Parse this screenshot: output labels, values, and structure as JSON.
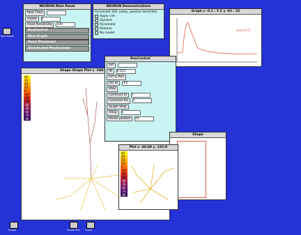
{
  "main_panel": {
    "title": "NEURON Main Panel",
    "rows": [
      {
        "label": "Real Time",
        "value": ""
      },
      {
        "label": "cvode",
        "value": "0"
      },
      {
        "label": "Axial Resistivity",
        "value": "100"
      },
      {
        "label": "RunControl"
      },
      {
        "label": "New Graph"
      },
      {
        "label": "Point Processes"
      },
      {
        "label": "Distributed Mechanisms"
      }
    ]
  },
  "demos": {
    "title": "NEURON Demonstrations",
    "heading": "Pyramidal 3D1 comp, passive dendrites",
    "options": [
      "Apply sim",
      "Stylized",
      "Pyramidal",
      "Release",
      "No model"
    ]
  },
  "graph": {
    "title": "Graph x -0.1 : 5.5 y -92 : 32",
    "legend": "soma(0.5)"
  },
  "run_control": {
    "title": "RunControl",
    "rows": [
      {
        "label": "Init",
        "value": ""
      },
      {
        "label": "dt",
        "value": "0.025"
      },
      {
        "label": "Init & Run"
      },
      {
        "label": "Init at",
        "value": "-65"
      },
      {
        "label": "Stop"
      },
      {
        "label": "Continue til",
        "value": "5"
      },
      {
        "label": "Continue for",
        "value": "1"
      },
      {
        "label": "Single Step"
      },
      {
        "label": "Tstop",
        "value": "5"
      },
      {
        "label": "Points plotted",
        "value": "40"
      }
    ]
  },
  "shape_plot": {
    "title": "Shape Shape Plot x -548:551 y -374:407",
    "scale": [
      "40",
      "30",
      "20",
      "10",
      "0",
      "-10",
      "-20",
      "-30",
      "-40",
      "-50",
      "-60",
      "-70",
      "-80"
    ]
  },
  "plot": {
    "title": "Plot x -46:49 y -141:9",
    "scale": [
      "40",
      "30",
      "20",
      "10",
      "0",
      "-10",
      "-20",
      "-30",
      "-40",
      "-50",
      "-60",
      "-70",
      "-80"
    ]
  },
  "shape_small": {
    "title": "Shape"
  },
  "icons": [
    "Tool Shape",
    "Shape",
    "Shape Plot",
    "Graph"
  ]
}
